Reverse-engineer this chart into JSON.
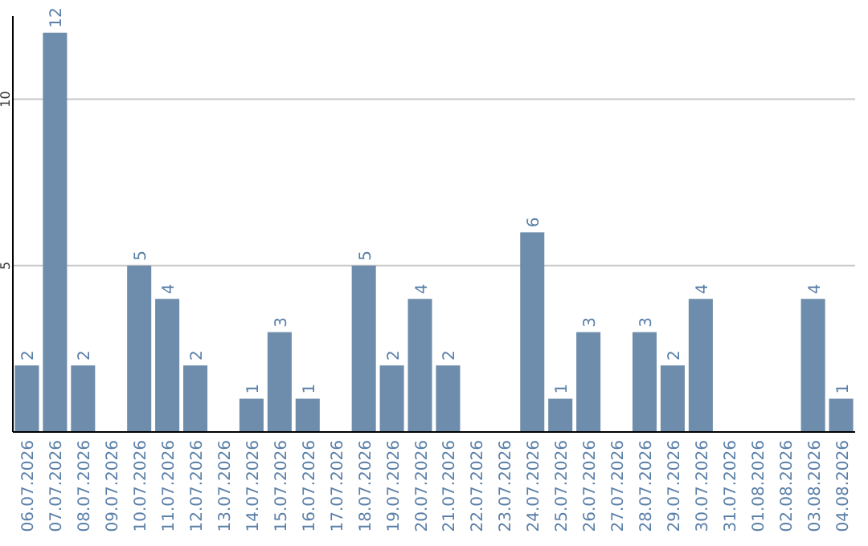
{
  "chart_data": {
    "type": "bar",
    "categories": [
      "06.07.2026",
      "07.07.2026",
      "08.07.2026",
      "09.07.2026",
      "10.07.2026",
      "11.07.2026",
      "12.07.2026",
      "13.07.2026",
      "14.07.2026",
      "15.07.2026",
      "16.07.2026",
      "17.07.2026",
      "18.07.2026",
      "19.07.2026",
      "20.07.2026",
      "21.07.2026",
      "22.07.2026",
      "23.07.2026",
      "24.07.2026",
      "25.07.2026",
      "26.07.2026",
      "27.07.2026",
      "28.07.2026",
      "29.07.2026",
      "30.07.2026",
      "31.07.2026",
      "01.08.2026",
      "02.08.2026",
      "03.08.2026",
      "04.08.2026"
    ],
    "values": [
      2,
      12,
      2,
      0,
      5,
      4,
      2,
      0,
      1,
      3,
      1,
      0,
      5,
      2,
      4,
      2,
      0,
      0,
      6,
      1,
      3,
      0,
      3,
      2,
      4,
      0,
      0,
      0,
      4,
      1
    ],
    "value_labels": [
      "2",
      "12",
      "2",
      null,
      "5",
      "4",
      "2",
      null,
      "1",
      "3",
      "1",
      null,
      "5",
      "2",
      "4",
      "2",
      null,
      null,
      "6",
      "1",
      "3",
      null,
      "3",
      "2",
      "4",
      null,
      null,
      null,
      "4",
      "1"
    ],
    "color": "#6e8cab",
    "ylim": [
      0,
      12.5
    ],
    "yticks": [
      5,
      10
    ],
    "grid": "y"
  }
}
